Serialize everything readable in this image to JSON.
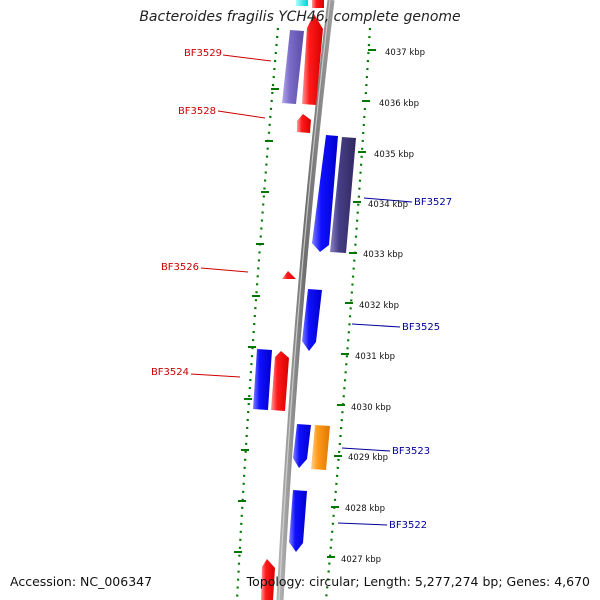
{
  "header": {
    "title": "Bacteroides fragilis YCH46, complete genome"
  },
  "footer": {
    "accession": "Accession: NC_006347",
    "summary": "Topology: circular; Length: 5,277,274 bp; Genes: 4,670"
  },
  "colors": {
    "forward_gene": "#ee0000",
    "reverse_gene": "#0000ee",
    "forward_label": "#cc0000",
    "reverse_label": "#000099",
    "tick": "#007700",
    "backbone": "#808080",
    "purple_feature": "#7b6cc8",
    "dark_purple_feature": "#463e86",
    "orange_feature": "#ff8c00",
    "cyan_feature": "#00dddd"
  },
  "scale": {
    "unit": "kbp",
    "labels": [
      "4037 kbp",
      "4036 kbp",
      "4035 kbp",
      "4034 kbp",
      "4033 kbp",
      "4032 kbp",
      "4031 kbp",
      "4030 kbp",
      "4029 kbp",
      "4028 kbp",
      "4027 kbp"
    ]
  },
  "genes": {
    "forward": [
      {
        "label": "BF3529"
      },
      {
        "label": "BF3528"
      },
      {
        "label": "BF3526"
      },
      {
        "label": "BF3524"
      }
    ],
    "reverse": [
      {
        "label": "BF3527"
      },
      {
        "label": "BF3525"
      },
      {
        "label": "BF3523"
      },
      {
        "label": "BF3522"
      }
    ]
  }
}
